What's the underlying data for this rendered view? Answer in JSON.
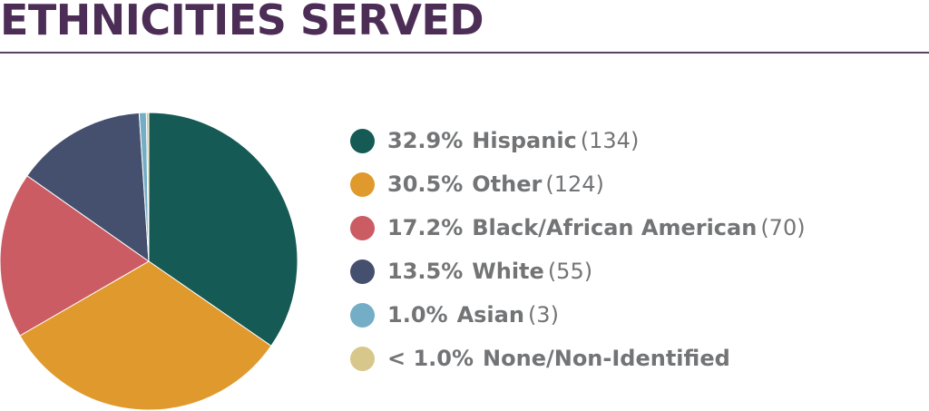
{
  "title": "ETHNICITIES SERVED",
  "chart_data": {
    "type": "pie",
    "slices": [
      {
        "percent_label": "32.9%",
        "name": "Hispanic",
        "count_label": "(134)",
        "value": 134,
        "color": "#155a54"
      },
      {
        "percent_label": "30.5%",
        "name": "Other",
        "count_label": "(124)",
        "value": 124,
        "color": "#e0992d"
      },
      {
        "percent_label": "17.2%",
        "name": "Black/African American",
        "count_label": "(70)",
        "value": 70,
        "color": "#cb5c63"
      },
      {
        "percent_label": "13.5%",
        "name": "White",
        "count_label": "(55)",
        "value": 55,
        "color": "#45506e"
      },
      {
        "percent_label": "1.0%",
        "name": "Asian",
        "count_label": "(3)",
        "value": 3,
        "color": "#73aec6"
      },
      {
        "percent_label": "< 1.0%",
        "name": "None/Non-Identified",
        "count_label": "",
        "value": 1,
        "color": "#d8c78b"
      }
    ]
  }
}
